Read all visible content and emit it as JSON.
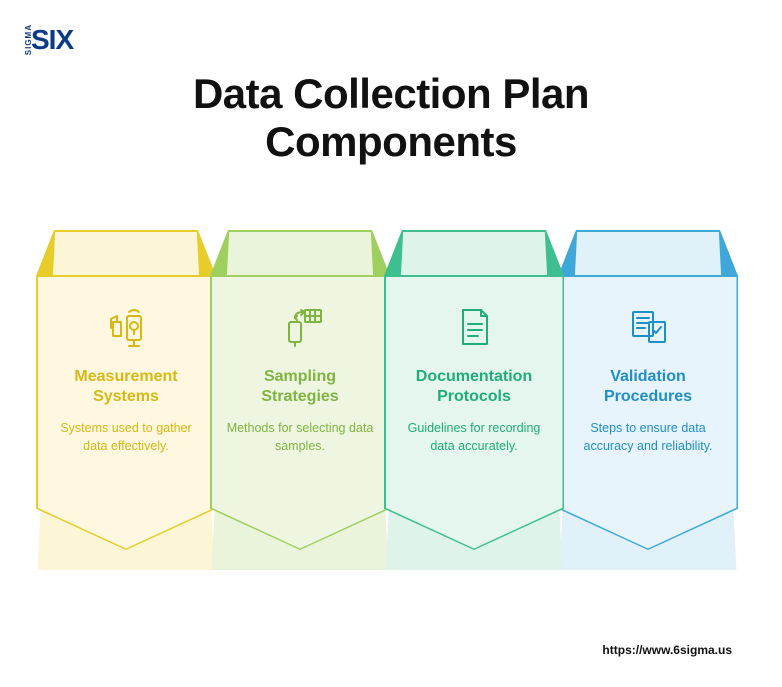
{
  "logo": {
    "text": "SIX",
    "subtext": "SIGMA"
  },
  "title": "Data Collection Plan\nComponents",
  "footer_url": "https://www.6sigma.us",
  "cards": [
    {
      "icon": "measurement",
      "title": "Measurement Systems",
      "desc": "Systems used to gather data effectively.",
      "border": "#e7cc2a",
      "fill_roof": "#fcf6d6",
      "fill_body": "#fdf8df",
      "text": "#d8b814"
    },
    {
      "icon": "sampling",
      "title": "Sampling Strategies",
      "desc": "Methods for selecting data samples.",
      "border": "#9fcf5f",
      "fill_roof": "#eaf4da",
      "fill_body": "#eef6e2",
      "text": "#7fb53f"
    },
    {
      "icon": "documentation",
      "title": "Documentation Protocols",
      "desc": "Guidelines for recording data accurately.",
      "border": "#3fbf8f",
      "fill_roof": "#def4ea",
      "fill_body": "#e4f6ee",
      "text": "#1fae78"
    },
    {
      "icon": "validation",
      "title": "Validation Procedures",
      "desc": "Steps to ensure data accuracy and reliability.",
      "border": "#3fa8d8",
      "fill_roof": "#e0f1f9",
      "fill_body": "#e7f4fb",
      "text": "#1f8fc8"
    }
  ],
  "style": {
    "title_color": "#111111",
    "title_fontsize": 42,
    "card_title_fontsize": 16,
    "card_desc_fontsize": 12.5,
    "background": "#ffffff"
  }
}
